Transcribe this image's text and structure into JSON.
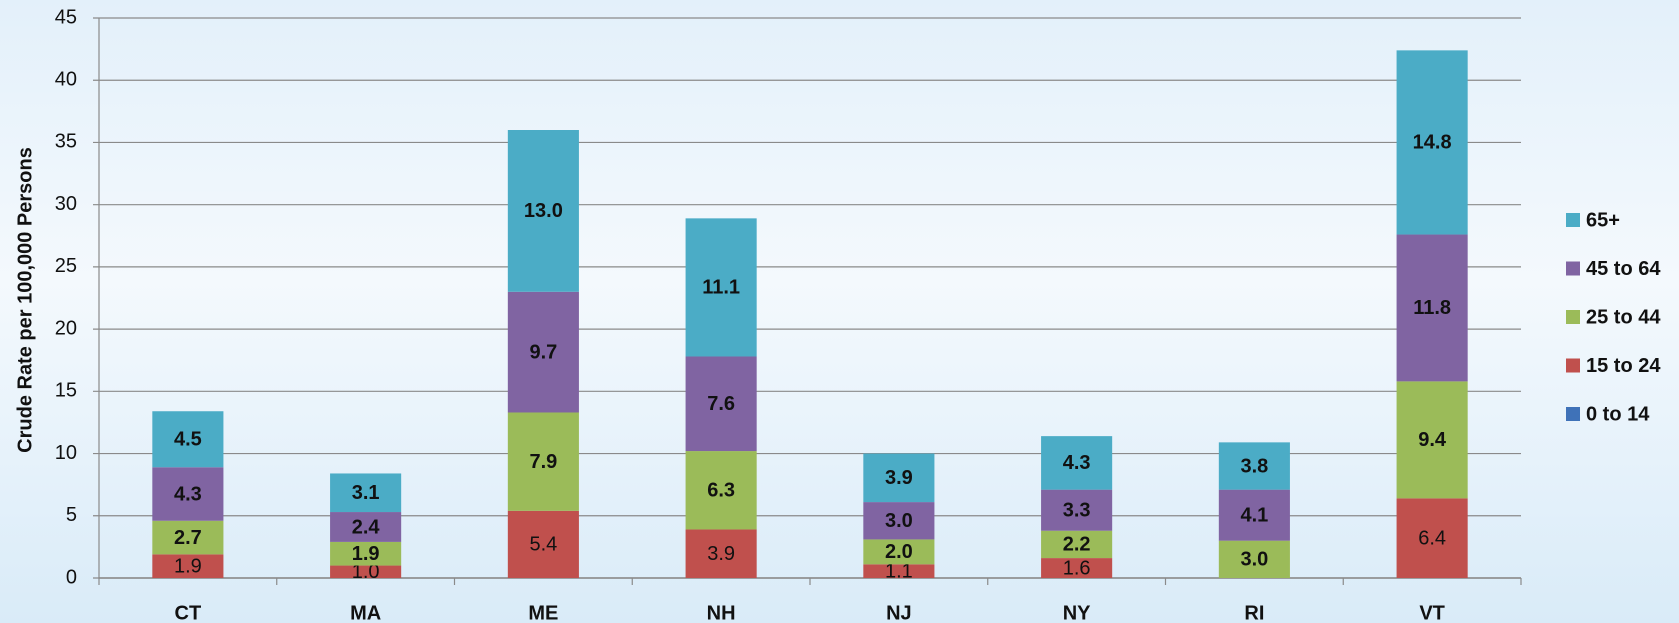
{
  "chart_data": {
    "type": "stacked_bar",
    "y_label": "Crude Rate per 100,000 Persons",
    "categories": [
      "CT",
      "MA",
      "ME",
      "NH",
      "NJ",
      "NY",
      "RI",
      "VT"
    ],
    "series": [
      {
        "name": "0 to 14",
        "color": "#3f72b8",
        "values": [
          0,
          0,
          0,
          0,
          0,
          0,
          0,
          0
        ]
      },
      {
        "name": "15 to 24",
        "color": "#c0504d",
        "values": [
          1.9,
          1.0,
          5.4,
          3.9,
          1.1,
          1.6,
          0,
          6.4
        ],
        "value_labels": [
          "1.9",
          "1.0",
          "5.4",
          "3.9",
          "1.1",
          "1.6",
          null,
          "6.4"
        ]
      },
      {
        "name": "25 to 44",
        "color": "#9bbb59",
        "values": [
          2.7,
          1.9,
          7.9,
          6.3,
          2.0,
          2.2,
          3.0,
          9.4
        ],
        "value_labels": [
          "2.7",
          "1.9",
          "7.9",
          "6.3",
          "2.0",
          "2.2",
          "3.0",
          "9.4"
        ]
      },
      {
        "name": "45 to 64",
        "color": "#8064a2",
        "values": [
          4.3,
          2.4,
          9.7,
          7.6,
          3.0,
          3.3,
          4.1,
          11.8
        ],
        "value_labels": [
          "4.3",
          "2.4",
          "9.7",
          "7.6",
          "3.0",
          "3.3",
          "4.1",
          "11.8"
        ]
      },
      {
        "name": "65+",
        "color": "#4bacc6",
        "values": [
          4.5,
          3.1,
          13.0,
          11.1,
          3.9,
          4.3,
          3.8,
          14.8
        ],
        "value_labels": [
          "4.5",
          "3.1",
          "13.0",
          "11.1",
          "3.9",
          "4.3",
          "3.8",
          "14.8"
        ]
      }
    ],
    "ylim": [
      0,
      45
    ],
    "yticks": [
      0,
      5,
      10,
      15,
      20,
      25,
      30,
      35,
      40,
      45
    ],
    "grid": true,
    "legend": "right"
  }
}
